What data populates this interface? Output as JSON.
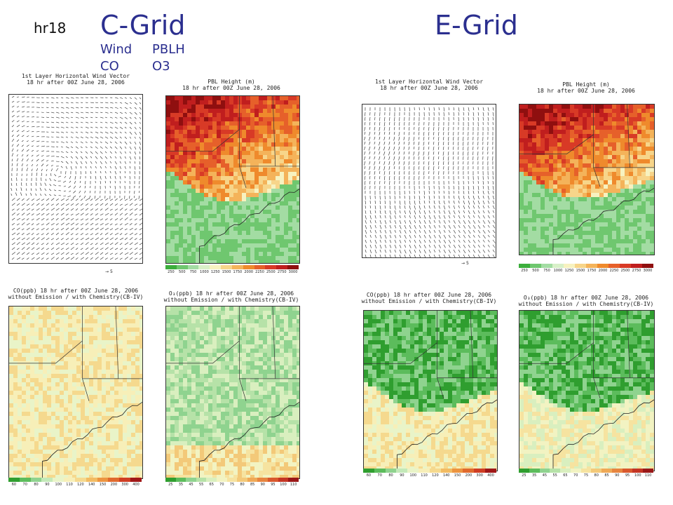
{
  "header": {
    "hour_label": "hr18",
    "c_grid_title": "C-Grid",
    "e_grid_title": "E-Grid",
    "legend_row1": [
      "Wind",
      "PBLH"
    ],
    "legend_row2": [
      "CO",
      "O3"
    ]
  },
  "titles": {
    "wind": [
      "1st Layer Horizontal Wind Vector",
      "18 hr after 00Z June 28, 2006"
    ],
    "pbl": [
      "PBL Height (m)",
      "18 hr after 00Z June 28, 2006"
    ],
    "co": [
      "CO(ppb) 18 hr after 00Z June 28, 2006",
      "without Emission / with Chemistry(CB-IV)"
    ],
    "o3": [
      "O₃(ppb) 18 hr after 00Z June 28, 2006",
      "without Emission / with Chemistry(CB-IV)"
    ]
  },
  "wind_reference_label": "5",
  "colorbars": {
    "pbl": {
      "ticks": [
        "250",
        "500",
        "750",
        "1000",
        "1250",
        "1500",
        "1750",
        "2000",
        "2250",
        "2500",
        "2750",
        "3000"
      ],
      "colors": [
        "#3cae3c",
        "#6fc76f",
        "#a3dca3",
        "#d8f0c8",
        "#f7f2c0",
        "#f7d58a",
        "#f4b35a",
        "#ef8a2c",
        "#e6602a",
        "#d83a26",
        "#c01e1e",
        "#8f0f0f"
      ]
    },
    "co": {
      "ticks": [
        "60",
        "70",
        "80",
        "90",
        "100",
        "110",
        "120",
        "140",
        "150",
        "200",
        "300",
        "400"
      ],
      "colors": [
        "#2f9e2f",
        "#5cbc5c",
        "#8fd38f",
        "#c3e9b9",
        "#e9f4c8",
        "#f7efb8",
        "#f5d98e",
        "#f2bb62",
        "#ec9440",
        "#e06a2e",
        "#cf3e24",
        "#a01818"
      ]
    },
    "o3": {
      "ticks": [
        "25",
        "35",
        "45",
        "55",
        "65",
        "70",
        "75",
        "80",
        "85",
        "90",
        "95",
        "100",
        "110"
      ],
      "colors": [
        "#2f9e2f",
        "#5cbc5c",
        "#8fd38f",
        "#b6e2a8",
        "#d9efbf",
        "#f2f3c2",
        "#f6e3a0",
        "#f3c979",
        "#efa957",
        "#e78540",
        "#d9592e",
        "#c43524",
        "#9a1818"
      ]
    }
  }
}
